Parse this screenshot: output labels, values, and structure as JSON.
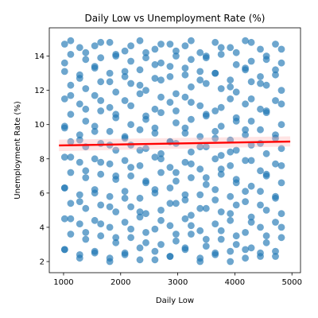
{
  "chart_data": {
    "type": "scatter",
    "title": "Daily Low vs Unemployment Rate (%)",
    "xlabel": "Daily Low",
    "ylabel": "Unemployment Rate (%)",
    "xlim": [
      750,
      5150
    ],
    "ylim": [
      1.35,
      15.65
    ],
    "xticks": [
      1000,
      2000,
      3000,
      4000,
      5000
    ],
    "yticks": [
      2,
      4,
      6,
      8,
      10,
      12,
      14
    ],
    "grid": false,
    "point_color": "#1f77b4",
    "trend_color": "#ff0000",
    "band_color": "#ffb3b3",
    "trend_line": {
      "x": [
        920,
        4970
      ],
      "y": [
        8.78,
        9.01
      ]
    },
    "confidence_band": {
      "x": [
        920,
        4970
      ],
      "lower": [
        8.45,
        8.72
      ],
      "upper": [
        9.12,
        9.31
      ]
    },
    "points": {
      "x": [
        1019,
        1283,
        1546,
        1810,
        2074,
        2338,
        2601,
        2865,
        3129,
        3392,
        3656,
        3920,
        4184,
        4447,
        4711,
        1124,
        1388,
        1651,
        1915,
        2179,
        2442,
        2706,
        2970,
        3234,
        3497,
        3761,
        4025,
        4288,
        4552,
        4816,
        1019,
        1283,
        1546,
        1810,
        2074,
        2338,
        2601,
        2865,
        3129,
        3392,
        3656,
        3920,
        4184,
        4447,
        4711,
        1124,
        1388,
        1651,
        1915,
        2179,
        2442,
        2706,
        2970,
        3234,
        3497,
        3761,
        4025,
        4288,
        4552,
        4816,
        1019,
        1283,
        1546,
        1810,
        2074,
        2338,
        2601,
        2865,
        3129,
        3392,
        3656,
        3920,
        4184,
        4447,
        4711,
        1124,
        1388,
        1651,
        1915,
        2179,
        2442,
        2706,
        2970,
        3234,
        3497,
        3761,
        4025,
        4288,
        4552,
        4816,
        1019,
        1283,
        1546,
        1810,
        2074,
        2338,
        2601,
        2865,
        3129,
        3392,
        3656,
        3920,
        4184,
        4447,
        4711,
        1124,
        1388,
        1651,
        1915,
        2179,
        2442,
        2706,
        2970,
        3234,
        3497,
        3761,
        4025,
        4288,
        4552,
        4816,
        1019,
        1283,
        1546,
        1810,
        2074,
        2338,
        2601,
        2865,
        3129,
        3392,
        3656,
        3920,
        4184,
        4447,
        4711,
        1124,
        1388,
        1651,
        1915,
        2179,
        2442,
        2706,
        2970,
        3234,
        3497,
        3761,
        4025,
        4288,
        4552,
        4816,
        1019,
        1283,
        1546,
        1810,
        2074,
        2338,
        2601,
        2865,
        3129,
        3392,
        3656,
        3920,
        4184,
        4447,
        4711,
        1124,
        1388,
        1651,
        1915,
        2179,
        2442,
        2706,
        2970,
        3234,
        3497,
        3761,
        4025,
        4288,
        4552,
        4816,
        1019,
        1283,
        1546,
        1810,
        2074,
        2338,
        2601,
        2865,
        3129,
        3392,
        3656,
        3920,
        4184,
        4447,
        4711,
        1124,
        1388,
        1651,
        1915,
        2179,
        2442,
        2706,
        2970,
        3234,
        3497,
        3761,
        4025,
        4288,
        4552,
        4816,
        1019,
        1283,
        1546,
        1810,
        2074,
        2338,
        2601,
        2865,
        3129,
        3392,
        3656,
        3920,
        4184,
        4447,
        4711,
        1124,
        1388,
        1651,
        1915,
        2179,
        2442,
        2706,
        2970,
        3234,
        3497,
        3761,
        4025,
        4288,
        4552,
        4816,
        1019,
        1283,
        1546,
        1810,
        2074,
        2338,
        2601,
        2865,
        3129,
        3392,
        3656,
        3920,
        4184,
        4447,
        4711,
        1124,
        1388,
        1651,
        1915,
        2179,
        2442,
        2706,
        2970,
        3234,
        3497,
        3761,
        4025,
        4288,
        4552,
        4816,
        1019,
        1283,
        1546,
        1810,
        2074,
        2338,
        2601,
        2865,
        3129,
        3392,
        3656,
        3920,
        4184,
        4447,
        4711,
        1124,
        1388,
        1651,
        1915,
        2179,
        2442,
        2706,
        2970,
        3234,
        3497,
        3761,
        4025,
        4288,
        4552,
        4816,
        1019,
        1283,
        1546,
        1810,
        2074,
        2338,
        2601,
        2865,
        3129,
        3392,
        3656,
        3920,
        4184,
        4447,
        4711,
        1124,
        1388,
        1651,
        1915,
        2179,
        2442,
        2706,
        2970,
        3234,
        3497,
        3761,
        4025,
        4288,
        4552,
        4816,
        1019,
        1283,
        1546,
        1810,
        2074,
        2338,
        2601,
        2865,
        3129,
        3392,
        3656,
        3920,
        4184,
        4447,
        4711
      ],
      "y": [
        14.7,
        14.5,
        14.6,
        14.8,
        14.3,
        14.9,
        14.4,
        14.7,
        14.6,
        14.2,
        14.8,
        14.5,
        14.9,
        14.4,
        14.7,
        14.1,
        13.8,
        13.9,
        14.0,
        13.7,
        14.2,
        13.6,
        14.0,
        13.8,
        13.9,
        14.1,
        13.5,
        13.7,
        14.0,
        13.6,
        13.1,
        12.9,
        13.3,
        13.0,
        12.8,
        13.2,
        12.7,
        13.4,
        12.9,
        13.1,
        13.0,
        12.6,
        13.3,
        12.8,
        13.2,
        12.3,
        12.1,
        12.5,
        11.9,
        12.4,
        12.0,
        12.6,
        11.8,
        12.2,
        12.4,
        12.1,
        11.9,
        12.5,
        12.3,
        12.0,
        11.5,
        11.2,
        11.7,
        11.0,
        11.4,
        11.8,
        10.9,
        11.3,
        11.6,
        11.1,
        10.8,
        11.5,
        11.2,
        10.9,
        11.4,
        10.6,
        10.2,
        10.8,
        10.4,
        10.0,
        10.5,
        10.7,
        10.1,
        10.3,
        10.6,
        9.9,
        10.4,
        10.2,
        10.8,
        10.0,
        9.8,
        9.4,
        9.9,
        9.6,
        9.2,
        9.7,
        9.5,
        9.0,
        9.8,
        9.3,
        9.6,
        9.1,
        9.4,
        9.7,
        9.2,
        9.0,
        8.7,
        8.9,
        8.5,
        8.8,
        8.6,
        8.3,
        8.9,
        8.4,
        8.7,
        8.2,
        8.5,
        8.8,
        8.3,
        8.6,
        8.1,
        7.8,
        8.0,
        7.7,
        7.9,
        7.6,
        8.1,
        7.5,
        7.8,
        7.4,
        8.0,
        7.6,
        7.9,
        7.3,
        7.7,
        7.2,
        6.9,
        7.1,
        6.8,
        7.0,
        6.6,
        7.2,
        6.7,
        6.9,
        6.5,
        7.1,
        6.8,
        6.4,
        7.0,
        6.6,
        6.3,
        5.9,
        6.2,
        5.8,
        6.1,
        5.7,
        6.0,
        6.3,
        5.6,
        5.9,
        6.2,
        5.8,
        5.5,
        6.1,
        5.7,
        5.4,
        5.1,
        5.3,
        4.9,
        5.2,
        4.8,
        5.0,
        5.4,
        4.7,
        5.1,
        4.9,
        5.3,
        4.6,
        5.0,
        4.8,
        4.5,
        4.2,
        4.4,
        4.0,
        4.3,
        4.6,
        3.9,
        4.1,
        4.5,
        3.8,
        4.2,
        4.4,
        3.7,
        4.0,
        4.3,
        3.6,
        3.3,
        3.5,
        3.1,
        3.4,
        3.7,
        3.0,
        3.2,
        3.6,
        2.9,
        3.3,
        3.5,
        2.8,
        3.1,
        3.4,
        2.7,
        2.4,
        2.6,
        2.2,
        2.5,
        2.8,
        2.1,
        2.3,
        2.7,
        2.0,
        2.4,
        2.6,
        2.2,
        2.5,
        2.3,
        14.9,
        14.2,
        14.8,
        14.1,
        14.6,
        13.9,
        14.7,
        14.3,
        14.9,
        14.0,
        14.5,
        14.2,
        14.8,
        13.8,
        14.4,
        13.6,
        12.7,
        13.4,
        12.5,
        13.1,
        12.3,
        13.5,
        12.8,
        13.3,
        12.6,
        13.0,
        12.2,
        13.2,
        12.4,
        12.9,
        11.7,
        10.9,
        11.4,
        10.6,
        11.1,
        10.3,
        11.6,
        10.8,
        11.3,
        10.5,
        11.0,
        10.2,
        11.5,
        10.7,
        11.2,
        9.9,
        9.1,
        9.6,
        8.8,
        9.3,
        8.5,
        9.8,
        9.0,
        9.5,
        8.7,
        9.2,
        8.4,
        9.7,
        8.9,
        9.4,
        8.1,
        7.3,
        7.8,
        7.0,
        7.5,
        6.7,
        8.0,
        7.2,
        7.7,
        6.9,
        7.4,
        6.6,
        7.9,
        7.1,
        7.6,
        6.3,
        5.5,
        6.0,
        5.2,
        5.7,
        4.9,
        6.2,
        5.4,
        5.9,
        5.1,
        5.6,
        4.8,
        6.1,
        5.3,
        5.8,
        4.5,
        3.7,
        4.2,
        3.4,
        3.9,
        3.1,
        4.4,
        3.6,
        4.1,
        3.3,
        3.8,
        3.0,
        4.3,
        3.5,
        4.0,
        2.7,
        2.2,
        2.5,
        2.0,
        2.4,
        2.1,
        2.6,
        2.3,
        2.8,
        2.2,
        2.5,
        2.0,
        2.7,
        2.3,
        2.6
      ]
    }
  }
}
